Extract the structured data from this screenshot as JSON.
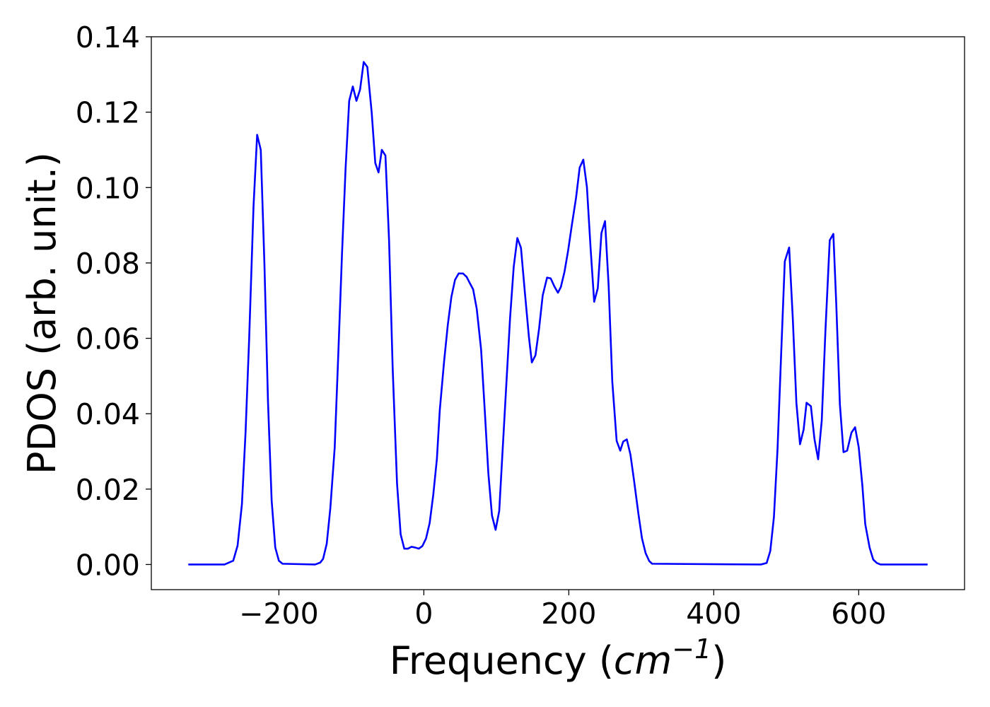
{
  "chart_data": {
    "type": "line",
    "xlabel": [
      "Frequency (",
      "cm",
      "−1",
      ")"
    ],
    "ylabel": "PDOS (arb. unit.)",
    "xlim": [
      -376,
      746
    ],
    "ylim": [
      -0.00667,
      0.14
    ],
    "xticks": [
      {
        "value": -200,
        "label": "−200"
      },
      0,
      200,
      400,
      600
    ],
    "yticks": [
      {
        "value": 0,
        "label": "0.00"
      },
      {
        "value": 0.02,
        "label": "0.02"
      },
      {
        "value": 0.04,
        "label": "0.04"
      },
      {
        "value": 0.06,
        "label": "0.06"
      },
      {
        "value": 0.08,
        "label": "0.08"
      },
      {
        "value": 0.1,
        "label": "0.10"
      },
      {
        "value": 0.12,
        "label": "0.12"
      },
      {
        "value": 0.14,
        "label": "0.14"
      }
    ],
    "grid": false,
    "color": "#0000ff",
    "x": [
      -325,
      -275,
      -263,
      -257,
      -251,
      -246,
      -241,
      -235,
      -230,
      -225,
      -220,
      -215,
      -210,
      -205,
      -200,
      -195,
      -150,
      -143,
      -139,
      -134,
      -129,
      -123,
      -118,
      -113,
      -108,
      -103,
      -98,
      -93,
      -88,
      -83,
      -78,
      -72,
      -67,
      -62.5,
      -58,
      -53,
      -48,
      -43,
      -37,
      -32,
      -27,
      -22,
      -17,
      -12,
      -7,
      -2,
      3,
      8,
      13,
      18,
      22,
      28,
      33,
      38,
      43,
      48,
      54,
      59,
      63,
      68,
      73,
      79,
      84,
      89,
      94,
      99,
      104,
      108,
      114,
      119,
      124,
      129,
      134,
      139,
      145,
      149,
      154,
      159,
      164,
      170,
      175,
      180,
      185,
      189,
      194,
      199,
      204,
      210,
      215,
      220,
      225,
      230,
      235,
      240,
      245,
      250,
      255,
      260,
      266,
      271,
      275,
      280,
      285,
      290,
      296,
      301,
      306,
      311,
      315,
      465,
      473,
      478,
      483,
      488,
      493,
      498,
      504,
      509,
      514,
      519,
      524,
      528,
      534,
      539,
      544,
      549,
      554,
      560,
      565,
      569,
      574,
      579,
      584,
      590,
      595,
      600,
      605,
      609,
      615,
      620,
      625,
      630,
      695
    ],
    "values": [
      0,
      0,
      0.001,
      0.005,
      0.016,
      0.035,
      0.06,
      0.095,
      0.114,
      0.11,
      0.08,
      0.043,
      0.017,
      0.0045,
      0.001,
      0.0002,
      0,
      0.0005,
      0.0015,
      0.0055,
      0.015,
      0.031,
      0.056,
      0.082,
      0.105,
      0.123,
      0.1268,
      0.123,
      0.126,
      0.1333,
      0.132,
      0.12,
      0.1065,
      0.104,
      0.11,
      0.1085,
      0.086,
      0.052,
      0.0215,
      0.008,
      0.0042,
      0.0042,
      0.0047,
      0.0045,
      0.0042,
      0.0049,
      0.0069,
      0.011,
      0.0185,
      0.028,
      0.041,
      0.054,
      0.0635,
      0.071,
      0.0755,
      0.0772,
      0.0772,
      0.0763,
      0.0748,
      0.073,
      0.0678,
      0.057,
      0.041,
      0.0242,
      0.013,
      0.0092,
      0.0142,
      0.028,
      0.0485,
      0.0655,
      0.079,
      0.0866,
      0.084,
      0.073,
      0.0603,
      0.0536,
      0.0555,
      0.0626,
      0.0714,
      0.0761,
      0.0759,
      0.0738,
      0.0721,
      0.0736,
      0.0776,
      0.0832,
      0.0898,
      0.0973,
      0.1053,
      0.1074,
      0.1001,
      0.0841,
      0.0697,
      0.0733,
      0.0879,
      0.0911,
      0.0738,
      0.0485,
      0.0328,
      0.0302,
      0.0326,
      0.0332,
      0.0292,
      0.0223,
      0.0135,
      0.0069,
      0.003,
      0.0009,
      0.0002,
      0,
      0.0004,
      0.0036,
      0.0126,
      0.0307,
      0.056,
      0.0804,
      0.0841,
      0.0654,
      0.0429,
      0.0319,
      0.0358,
      0.0429,
      0.042,
      0.0332,
      0.0279,
      0.0382,
      0.0617,
      0.086,
      0.0877,
      0.0692,
      0.0425,
      0.0298,
      0.0302,
      0.035,
      0.0364,
      0.0311,
      0.021,
      0.0107,
      0.0045,
      0.0013,
      0.0004,
      0,
      0
    ]
  }
}
